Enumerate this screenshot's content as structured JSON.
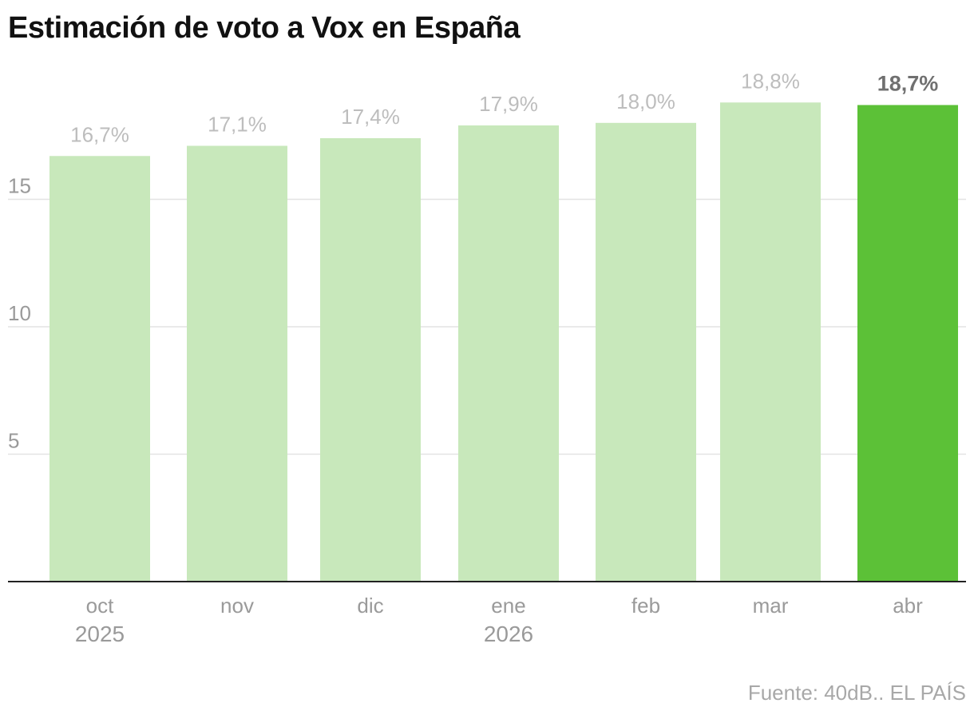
{
  "header": {
    "title": "Estimación de voto a Vox en España"
  },
  "footer": {
    "source": "Fuente: 40dB.. EL PAÍS"
  },
  "colors": {
    "bar": "#c8e8bb",
    "bar_highlight": "#5cc137",
    "value_label": "#bdbdbd",
    "value_label_highlight": "#707070",
    "tick_label": "#9a9a9a",
    "grid": "#e3e3e3",
    "axis": "#222222"
  },
  "chart_data": {
    "type": "bar",
    "title": "Estimación de voto a Vox en España",
    "categories": [
      "oct",
      "nov",
      "dic",
      "ene",
      "feb",
      "mar",
      "abr"
    ],
    "category_sublabels": [
      "2025",
      "",
      "",
      "2026",
      "",
      "",
      ""
    ],
    "values": [
      16.7,
      17.1,
      17.4,
      17.9,
      18.0,
      18.8,
      18.7
    ],
    "value_labels": [
      "16,7%",
      "17,1%",
      "17,4%",
      "17,9%",
      "18,0%",
      "18,8%",
      "18,7%"
    ],
    "highlight_index": 6,
    "y_ticks": [
      5,
      10,
      15
    ],
    "ylim": [
      0,
      20
    ],
    "grid": true,
    "xlabel": "",
    "ylabel": ""
  }
}
